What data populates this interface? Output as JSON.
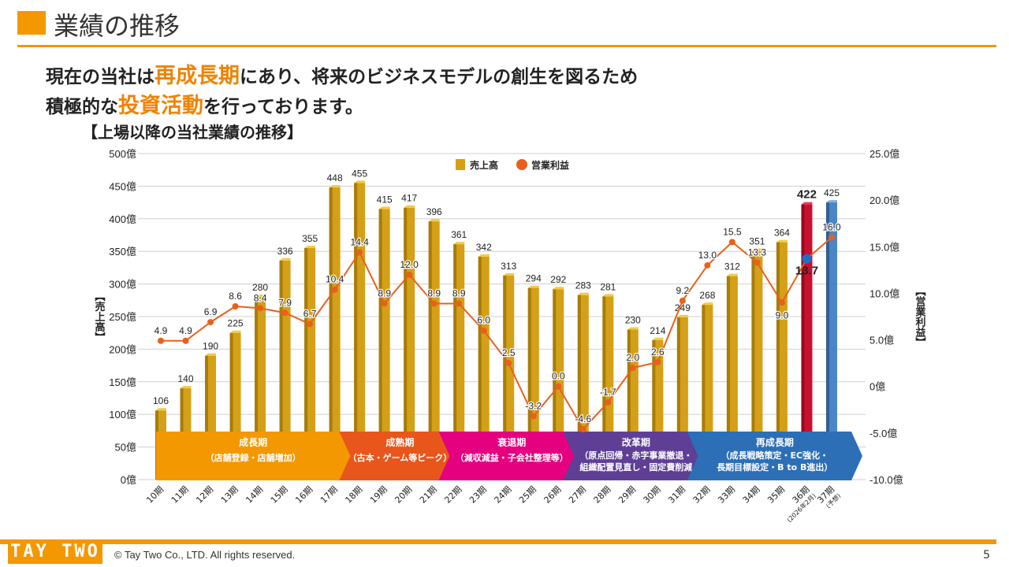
{
  "header": {
    "title": "業績の推移"
  },
  "lead": {
    "line1_a": "現在の当社は",
    "line1_hl": "再成長期",
    "line1_b": "にあり、将来のビジネスモデルの創生を図るため",
    "line2_a": "積極的な",
    "line2_hl": "投資活動",
    "line2_b": "を行っております。"
  },
  "footer": {
    "logo": "TAY TWO",
    "copyright": "© Tay Two Co., LTD. All rights reserved.",
    "page": "5"
  },
  "colors": {
    "accent": "#f39800",
    "sales": "#d4a017",
    "profit": "#e8601c",
    "actual36": "#c8102e",
    "forecast37": "#4a86c5",
    "profit36": "#1f6fc5"
  },
  "chart_data": {
    "type": "bar+line",
    "title": "【上場以降の当社業績の推移】",
    "ylabel_left": "【売上高】",
    "ylabel_right": "【営業利益】",
    "ylim_left": [
      0,
      500
    ],
    "ylim_right": [
      -10,
      25
    ],
    "left_ticks": [
      "0億",
      "50億",
      "100億",
      "150億",
      "200億",
      "250億",
      "300億",
      "350億",
      "400億",
      "450億",
      "500億"
    ],
    "right_ticks": [
      "-10.0億",
      "-5.0億",
      "0億",
      "5.0億",
      "10.0億",
      "15.0億",
      "20.0億",
      "25.0億"
    ],
    "grid": true,
    "legend_position": "top",
    "categories": [
      "10期",
      "11期",
      "12期",
      "13期",
      "14期",
      "15期",
      "16期",
      "17期",
      "18期",
      "19期",
      "20期",
      "21期",
      "22期",
      "23期",
      "24期",
      "25期",
      "26期",
      "27期",
      "28期",
      "29期",
      "30期",
      "31期",
      "32期",
      "33期",
      "34期",
      "35期",
      "36期",
      "37期"
    ],
    "category_notes": {
      "26": "(2026年2月)",
      "27": "(予想)"
    },
    "series": [
      {
        "name": "売上高",
        "type": "bar",
        "values": [
          106,
          140,
          190,
          225,
          280,
          336,
          355,
          448,
          455,
          415,
          417,
          396,
          361,
          342,
          313,
          294,
          292,
          283,
          281,
          230,
          214,
          249,
          268,
          312,
          351,
          364,
          422,
          425
        ]
      },
      {
        "name": "営業利益",
        "type": "line",
        "values": [
          4.9,
          4.9,
          6.9,
          8.6,
          8.4,
          7.9,
          6.7,
          10.4,
          14.4,
          8.9,
          12.0,
          8.9,
          8.9,
          6.0,
          2.5,
          -3.2,
          0.0,
          -4.6,
          -1.7,
          2.0,
          2.6,
          9.2,
          13.0,
          15.5,
          13.3,
          9.0,
          13.7,
          16.0
        ]
      }
    ],
    "phases": [
      {
        "name": "成長期",
        "desc": "（店舗登録・店舗増加）",
        "from": 0,
        "to": 7,
        "color": "#f39800"
      },
      {
        "name": "成熟期",
        "desc": "（古本・ゲーム等ピーク）",
        "from": 8,
        "to": 11,
        "color": "#e8561b"
      },
      {
        "name": "衰退期",
        "desc": "（減収減益・子会社整理等）",
        "from": 12,
        "to": 16,
        "color": "#e4007f"
      },
      {
        "name": "改革期",
        "desc": "（原点回帰・赤字事業撤退・",
        "desc2": "組織配置見直し・固定費削減",
        "from": 17,
        "to": 21,
        "color": "#5f3f96"
      },
      {
        "name": "再成長期",
        "desc": "（成長戦略策定・EC強化・",
        "desc2": "長期目標設定・B to B進出）",
        "from": 22,
        "to": 27,
        "color": "#2c6fb7"
      }
    ]
  }
}
